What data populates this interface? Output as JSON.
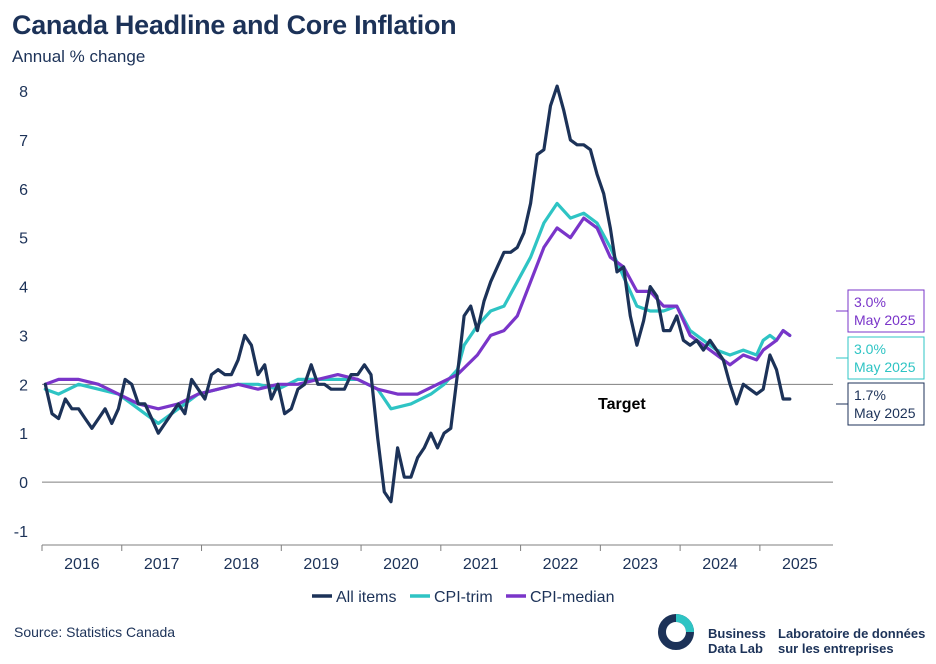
{
  "header": {
    "title": "Canada Headline and Core Inflation",
    "subtitle": "Annual % change"
  },
  "footer": {
    "source": "Source: Statistics Canada",
    "logo_en_line1": "Business",
    "logo_en_line2": "Data Lab",
    "logo_fr_line1": "Laboratoire de données",
    "logo_fr_line2": "sur les entreprises"
  },
  "colors": {
    "all_items": "#1c3258",
    "cpi_trim": "#2ec4c4",
    "cpi_median": "#7a35c9",
    "axis": "#7f7f7f",
    "text": "#1c3258"
  },
  "chart_data": {
    "type": "line",
    "title": "Canada Headline and Core Inflation",
    "ylabel": "Annual % change",
    "ylim": [
      -1,
      8
    ],
    "yticks": [
      -1,
      0,
      1,
      2,
      3,
      4,
      5,
      6,
      7,
      8
    ],
    "x_start": "2016-01",
    "x_end": "2025-05",
    "xtick_labels": [
      "2016",
      "2017",
      "2018",
      "2019",
      "2020",
      "2021",
      "2022",
      "2023",
      "2024",
      "2025"
    ],
    "target": {
      "value": 2,
      "label": "Target"
    },
    "legend_position": "bottom",
    "series": [
      {
        "name": "All items",
        "color": "#1c3258",
        "points": [
          [
            "2016-01",
            2.0
          ],
          [
            "2016-02",
            1.4
          ],
          [
            "2016-03",
            1.3
          ],
          [
            "2016-04",
            1.7
          ],
          [
            "2016-05",
            1.5
          ],
          [
            "2016-06",
            1.5
          ],
          [
            "2016-07",
            1.3
          ],
          [
            "2016-08",
            1.1
          ],
          [
            "2016-09",
            1.3
          ],
          [
            "2016-10",
            1.5
          ],
          [
            "2016-11",
            1.2
          ],
          [
            "2016-12",
            1.5
          ],
          [
            "2017-01",
            2.1
          ],
          [
            "2017-02",
            2.0
          ],
          [
            "2017-03",
            1.6
          ],
          [
            "2017-04",
            1.6
          ],
          [
            "2017-05",
            1.3
          ],
          [
            "2017-06",
            1.0
          ],
          [
            "2017-07",
            1.2
          ],
          [
            "2017-08",
            1.4
          ],
          [
            "2017-09",
            1.6
          ],
          [
            "2017-10",
            1.4
          ],
          [
            "2017-11",
            2.1
          ],
          [
            "2017-12",
            1.9
          ],
          [
            "2018-01",
            1.7
          ],
          [
            "2018-02",
            2.2
          ],
          [
            "2018-03",
            2.3
          ],
          [
            "2018-04",
            2.2
          ],
          [
            "2018-05",
            2.2
          ],
          [
            "2018-06",
            2.5
          ],
          [
            "2018-07",
            3.0
          ],
          [
            "2018-08",
            2.8
          ],
          [
            "2018-09",
            2.2
          ],
          [
            "2018-10",
            2.4
          ],
          [
            "2018-11",
            1.7
          ],
          [
            "2018-12",
            2.0
          ],
          [
            "2019-01",
            1.4
          ],
          [
            "2019-02",
            1.5
          ],
          [
            "2019-03",
            1.9
          ],
          [
            "2019-04",
            2.0
          ],
          [
            "2019-05",
            2.4
          ],
          [
            "2019-06",
            2.0
          ],
          [
            "2019-07",
            2.0
          ],
          [
            "2019-08",
            1.9
          ],
          [
            "2019-09",
            1.9
          ],
          [
            "2019-10",
            1.9
          ],
          [
            "2019-11",
            2.2
          ],
          [
            "2019-12",
            2.2
          ],
          [
            "2020-01",
            2.4
          ],
          [
            "2020-02",
            2.2
          ],
          [
            "2020-03",
            0.9
          ],
          [
            "2020-04",
            -0.2
          ],
          [
            "2020-05",
            -0.4
          ],
          [
            "2020-06",
            0.7
          ],
          [
            "2020-07",
            0.1
          ],
          [
            "2020-08",
            0.1
          ],
          [
            "2020-09",
            0.5
          ],
          [
            "2020-10",
            0.7
          ],
          [
            "2020-11",
            1.0
          ],
          [
            "2020-12",
            0.7
          ],
          [
            "2021-01",
            1.0
          ],
          [
            "2021-02",
            1.1
          ],
          [
            "2021-03",
            2.2
          ],
          [
            "2021-04",
            3.4
          ],
          [
            "2021-05",
            3.6
          ],
          [
            "2021-06",
            3.1
          ],
          [
            "2021-07",
            3.7
          ],
          [
            "2021-08",
            4.1
          ],
          [
            "2021-09",
            4.4
          ],
          [
            "2021-10",
            4.7
          ],
          [
            "2021-11",
            4.7
          ],
          [
            "2021-12",
            4.8
          ],
          [
            "2022-01",
            5.1
          ],
          [
            "2022-02",
            5.7
          ],
          [
            "2022-03",
            6.7
          ],
          [
            "2022-04",
            6.8
          ],
          [
            "2022-05",
            7.7
          ],
          [
            "2022-06",
            8.1
          ],
          [
            "2022-07",
            7.6
          ],
          [
            "2022-08",
            7.0
          ],
          [
            "2022-09",
            6.9
          ],
          [
            "2022-10",
            6.9
          ],
          [
            "2022-11",
            6.8
          ],
          [
            "2022-12",
            6.3
          ],
          [
            "2023-01",
            5.9
          ],
          [
            "2023-02",
            5.2
          ],
          [
            "2023-03",
            4.3
          ],
          [
            "2023-04",
            4.4
          ],
          [
            "2023-05",
            3.4
          ],
          [
            "2023-06",
            2.8
          ],
          [
            "2023-07",
            3.3
          ],
          [
            "2023-08",
            4.0
          ],
          [
            "2023-09",
            3.8
          ],
          [
            "2023-10",
            3.1
          ],
          [
            "2023-11",
            3.1
          ],
          [
            "2023-12",
            3.4
          ],
          [
            "2024-01",
            2.9
          ],
          [
            "2024-02",
            2.8
          ],
          [
            "2024-03",
            2.9
          ],
          [
            "2024-04",
            2.7
          ],
          [
            "2024-05",
            2.9
          ],
          [
            "2024-06",
            2.7
          ],
          [
            "2024-07",
            2.5
          ],
          [
            "2024-08",
            2.0
          ],
          [
            "2024-09",
            1.6
          ],
          [
            "2024-10",
            2.0
          ],
          [
            "2024-11",
            1.9
          ],
          [
            "2024-12",
            1.8
          ],
          [
            "2025-01",
            1.9
          ],
          [
            "2025-02",
            2.6
          ],
          [
            "2025-03",
            2.3
          ],
          [
            "2025-04",
            1.7
          ],
          [
            "2025-05",
            1.7
          ]
        ]
      },
      {
        "name": "CPI-trim",
        "color": "#2ec4c4",
        "points": [
          [
            "2016-01",
            1.9
          ],
          [
            "2016-03",
            1.8
          ],
          [
            "2016-06",
            2.0
          ],
          [
            "2016-09",
            1.9
          ],
          [
            "2016-12",
            1.8
          ],
          [
            "2017-03",
            1.5
          ],
          [
            "2017-06",
            1.2
          ],
          [
            "2017-09",
            1.5
          ],
          [
            "2017-12",
            1.8
          ],
          [
            "2018-03",
            1.9
          ],
          [
            "2018-06",
            2.0
          ],
          [
            "2018-09",
            2.0
          ],
          [
            "2018-12",
            1.9
          ],
          [
            "2019-03",
            2.1
          ],
          [
            "2019-06",
            2.1
          ],
          [
            "2019-09",
            2.1
          ],
          [
            "2019-12",
            2.1
          ],
          [
            "2020-03",
            1.9
          ],
          [
            "2020-05",
            1.5
          ],
          [
            "2020-08",
            1.6
          ],
          [
            "2020-11",
            1.8
          ],
          [
            "2021-01",
            2.0
          ],
          [
            "2021-03",
            2.3
          ],
          [
            "2021-04",
            2.8
          ],
          [
            "2021-06",
            3.2
          ],
          [
            "2021-08",
            3.5
          ],
          [
            "2021-10",
            3.6
          ],
          [
            "2021-12",
            4.1
          ],
          [
            "2022-02",
            4.6
          ],
          [
            "2022-04",
            5.3
          ],
          [
            "2022-06",
            5.7
          ],
          [
            "2022-08",
            5.4
          ],
          [
            "2022-10",
            5.5
          ],
          [
            "2022-12",
            5.3
          ],
          [
            "2023-02",
            4.8
          ],
          [
            "2023-04",
            4.2
          ],
          [
            "2023-06",
            3.6
          ],
          [
            "2023-08",
            3.5
          ],
          [
            "2023-10",
            3.5
          ],
          [
            "2023-12",
            3.6
          ],
          [
            "2024-02",
            3.1
          ],
          [
            "2024-04",
            2.9
          ],
          [
            "2024-06",
            2.7
          ],
          [
            "2024-08",
            2.6
          ],
          [
            "2024-10",
            2.7
          ],
          [
            "2024-12",
            2.6
          ],
          [
            "2025-01",
            2.9
          ],
          [
            "2025-02",
            3.0
          ],
          [
            "2025-03",
            2.9
          ],
          [
            "2025-04",
            3.1
          ],
          [
            "2025-05",
            3.0
          ]
        ]
      },
      {
        "name": "CPI-median",
        "color": "#7a35c9",
        "points": [
          [
            "2016-01",
            2.0
          ],
          [
            "2016-03",
            2.1
          ],
          [
            "2016-06",
            2.1
          ],
          [
            "2016-09",
            2.0
          ],
          [
            "2016-12",
            1.8
          ],
          [
            "2017-03",
            1.6
          ],
          [
            "2017-06",
            1.5
          ],
          [
            "2017-09",
            1.6
          ],
          [
            "2017-12",
            1.8
          ],
          [
            "2018-03",
            1.9
          ],
          [
            "2018-06",
            2.0
          ],
          [
            "2018-09",
            1.9
          ],
          [
            "2018-12",
            2.0
          ],
          [
            "2019-03",
            2.0
          ],
          [
            "2019-06",
            2.1
          ],
          [
            "2019-09",
            2.2
          ],
          [
            "2019-12",
            2.1
          ],
          [
            "2020-03",
            1.9
          ],
          [
            "2020-06",
            1.8
          ],
          [
            "2020-09",
            1.8
          ],
          [
            "2020-12",
            2.0
          ],
          [
            "2021-03",
            2.2
          ],
          [
            "2021-06",
            2.6
          ],
          [
            "2021-08",
            3.0
          ],
          [
            "2021-10",
            3.1
          ],
          [
            "2021-12",
            3.4
          ],
          [
            "2022-02",
            4.1
          ],
          [
            "2022-04",
            4.8
          ],
          [
            "2022-06",
            5.2
          ],
          [
            "2022-08",
            5.0
          ],
          [
            "2022-10",
            5.4
          ],
          [
            "2022-12",
            5.2
          ],
          [
            "2023-02",
            4.6
          ],
          [
            "2023-04",
            4.4
          ],
          [
            "2023-06",
            3.9
          ],
          [
            "2023-08",
            3.9
          ],
          [
            "2023-10",
            3.6
          ],
          [
            "2023-12",
            3.6
          ],
          [
            "2024-02",
            3.0
          ],
          [
            "2024-04",
            2.8
          ],
          [
            "2024-06",
            2.6
          ],
          [
            "2024-08",
            2.4
          ],
          [
            "2024-10",
            2.6
          ],
          [
            "2024-12",
            2.5
          ],
          [
            "2025-01",
            2.7
          ],
          [
            "2025-02",
            2.8
          ],
          [
            "2025-03",
            2.9
          ],
          [
            "2025-04",
            3.1
          ],
          [
            "2025-05",
            3.0
          ]
        ]
      }
    ],
    "end_labels": [
      {
        "series": "CPI-median",
        "value": "3.0%",
        "date": "May 2025"
      },
      {
        "series": "CPI-trim",
        "value": "3.0%",
        "date": "May 2025"
      },
      {
        "series": "All items",
        "value": "1.7%",
        "date": "May 2025"
      }
    ]
  }
}
